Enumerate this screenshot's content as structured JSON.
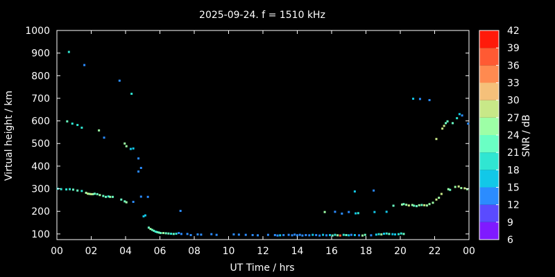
{
  "chart_data": {
    "type": "scatter",
    "title": "2025-09-24. f = 1510 kHz",
    "xlabel": "UT Time / hrs",
    "ylabel": "Virtual height / km",
    "xlim": [
      0,
      24
    ],
    "ylim": [
      75,
      1000
    ],
    "xticks": [
      "00",
      "02",
      "04",
      "06",
      "08",
      "10",
      "12",
      "14",
      "16",
      "18",
      "20",
      "22",
      "00"
    ],
    "yticks": [
      100,
      200,
      300,
      400,
      500,
      600,
      700,
      800,
      900,
      1000
    ],
    "grid": false,
    "colorbar": {
      "label": "SNR / dB",
      "min": 6,
      "max": 42,
      "ticks": [
        6,
        9,
        12,
        15,
        18,
        21,
        24,
        27,
        30,
        33,
        36,
        39,
        42
      ],
      "colors": [
        "#7f1aff",
        "#5a4bff",
        "#2b8cff",
        "#12c8e8",
        "#30e6d2",
        "#6affc4",
        "#9dffa6",
        "#c8e888",
        "#f5c07a",
        "#ff8a50",
        "#ff5a33",
        "#ff1a0a"
      ]
    },
    "points": [
      [
        0.05,
        300,
        18
      ],
      [
        0.25,
        298,
        18
      ],
      [
        0.55,
        297,
        18
      ],
      [
        0.75,
        298,
        18
      ],
      [
        0.95,
        296,
        21
      ],
      [
        1.2,
        292,
        21
      ],
      [
        1.45,
        290,
        18
      ],
      [
        1.7,
        282,
        24
      ],
      [
        1.8,
        278,
        27
      ],
      [
        1.9,
        277,
        24
      ],
      [
        2.0,
        276,
        27
      ],
      [
        2.1,
        276,
        24
      ],
      [
        2.2,
        278,
        21
      ],
      [
        2.35,
        276,
        21
      ],
      [
        2.5,
        272,
        24
      ],
      [
        2.7,
        268,
        21
      ],
      [
        2.85,
        264,
        21
      ],
      [
        3.0,
        266,
        18
      ],
      [
        3.1,
        264,
        24
      ],
      [
        3.25,
        264,
        21
      ],
      [
        3.75,
        252,
        21
      ],
      [
        3.95,
        244,
        21
      ],
      [
        4.05,
        240,
        24
      ],
      [
        4.45,
        242,
        12
      ],
      [
        4.9,
        265,
        12
      ],
      [
        5.3,
        264,
        12
      ],
      [
        5.05,
        178,
        15
      ],
      [
        5.15,
        182,
        15
      ],
      [
        5.35,
        128,
        21
      ],
      [
        5.45,
        122,
        24
      ],
      [
        5.55,
        118,
        21
      ],
      [
        5.65,
        114,
        21
      ],
      [
        5.75,
        110,
        18
      ],
      [
        5.85,
        108,
        21
      ],
      [
        5.95,
        106,
        21
      ],
      [
        6.05,
        104,
        21
      ],
      [
        6.2,
        104,
        24
      ],
      [
        6.35,
        103,
        21
      ],
      [
        6.5,
        102,
        21
      ],
      [
        6.65,
        101,
        18
      ],
      [
        6.8,
        100,
        21
      ],
      [
        6.95,
        101,
        18
      ],
      [
        7.1,
        104,
        12
      ],
      [
        7.25,
        100,
        12
      ],
      [
        7.6,
        100,
        12
      ],
      [
        7.8,
        95,
        12
      ],
      [
        8.2,
        98,
        12
      ],
      [
        8.4,
        97,
        12
      ],
      [
        9.0,
        99,
        12
      ],
      [
        9.3,
        96,
        12
      ],
      [
        10.3,
        98,
        12
      ],
      [
        10.6,
        97,
        12
      ],
      [
        11.0,
        96,
        12
      ],
      [
        11.4,
        95,
        12
      ],
      [
        11.7,
        94,
        12
      ],
      [
        12.3,
        96,
        12
      ],
      [
        12.7,
        95,
        12
      ],
      [
        12.85,
        93,
        12
      ],
      [
        13.0,
        94,
        15
      ],
      [
        13.2,
        95,
        12
      ],
      [
        13.5,
        96,
        12
      ],
      [
        13.7,
        94,
        12
      ],
      [
        13.85,
        97,
        12
      ],
      [
        14.0,
        94,
        12
      ],
      [
        14.15,
        96,
        12
      ],
      [
        14.3,
        93,
        12
      ],
      [
        14.5,
        95,
        12
      ],
      [
        14.7,
        94,
        12
      ],
      [
        14.9,
        96,
        15
      ],
      [
        15.1,
        95,
        12
      ],
      [
        15.3,
        93,
        12
      ],
      [
        15.5,
        96,
        15
      ],
      [
        15.7,
        94,
        12
      ],
      [
        15.9,
        95,
        15
      ],
      [
        16.05,
        93,
        21
      ],
      [
        16.2,
        96,
        18
      ],
      [
        16.35,
        94,
        24
      ],
      [
        16.5,
        93,
        36
      ],
      [
        16.7,
        96,
        18
      ],
      [
        16.85,
        95,
        21
      ],
      [
        17.0,
        94,
        15
      ],
      [
        17.15,
        96,
        12
      ],
      [
        17.35,
        95,
        15
      ],
      [
        17.6,
        94,
        12
      ],
      [
        17.8,
        93,
        24
      ],
      [
        17.95,
        96,
        21
      ],
      [
        18.3,
        94,
        12
      ],
      [
        18.6,
        97,
        15
      ],
      [
        18.75,
        99,
        18
      ],
      [
        18.9,
        98,
        24
      ],
      [
        19.05,
        101,
        15
      ],
      [
        19.2,
        102,
        18
      ],
      [
        19.35,
        100,
        21
      ],
      [
        19.55,
        99,
        15
      ],
      [
        19.7,
        98,
        15
      ],
      [
        19.9,
        99,
        18
      ],
      [
        20.05,
        102,
        18
      ],
      [
        20.2,
        100,
        21
      ],
      [
        15.6,
        197,
        24
      ],
      [
        16.2,
        198,
        12
      ],
      [
        16.6,
        190,
        12
      ],
      [
        17.0,
        197,
        12
      ],
      [
        17.4,
        191,
        15
      ],
      [
        17.55,
        192,
        18
      ],
      [
        18.5,
        197,
        15
      ],
      [
        19.2,
        198,
        15
      ],
      [
        19.6,
        225,
        21
      ],
      [
        20.1,
        230,
        24
      ],
      [
        20.2,
        232,
        21
      ],
      [
        20.35,
        229,
        24
      ],
      [
        20.5,
        226,
        27
      ],
      [
        20.7,
        228,
        24
      ],
      [
        20.8,
        225,
        21
      ],
      [
        20.95,
        223,
        21
      ],
      [
        21.1,
        227,
        24
      ],
      [
        21.25,
        228,
        21
      ],
      [
        21.4,
        227,
        27
      ],
      [
        21.55,
        226,
        24
      ],
      [
        21.7,
        232,
        24
      ],
      [
        21.9,
        238,
        24
      ],
      [
        22.1,
        252,
        27
      ],
      [
        22.25,
        260,
        24
      ],
      [
        22.4,
        277,
        27
      ],
      [
        22.8,
        298,
        24
      ],
      [
        22.9,
        295,
        21
      ],
      [
        23.2,
        308,
        24
      ],
      [
        23.4,
        310,
        27
      ],
      [
        23.55,
        303,
        24
      ],
      [
        23.75,
        302,
        27
      ],
      [
        23.9,
        298,
        24
      ],
      [
        0.6,
        598,
        21
      ],
      [
        0.9,
        588,
        18
      ],
      [
        1.2,
        582,
        18
      ],
      [
        1.45,
        570,
        18
      ],
      [
        2.45,
        558,
        24
      ],
      [
        2.75,
        526,
        12
      ],
      [
        3.95,
        500,
        24
      ],
      [
        4.05,
        488,
        24
      ],
      [
        4.3,
        476,
        15
      ],
      [
        4.45,
        478,
        15
      ],
      [
        4.75,
        434,
        12
      ],
      [
        4.9,
        392,
        12
      ],
      [
        4.75,
        376,
        12
      ],
      [
        0.7,
        905,
        18
      ],
      [
        1.6,
        847,
        12
      ],
      [
        3.65,
        778,
        12
      ],
      [
        4.35,
        720,
        18
      ],
      [
        7.2,
        202,
        12
      ],
      [
        17.35,
        288,
        15
      ],
      [
        18.45,
        292,
        12
      ],
      [
        20.75,
        698,
        15
      ],
      [
        21.15,
        697,
        12
      ],
      [
        21.7,
        692,
        12
      ],
      [
        22.1,
        520,
        27
      ],
      [
        22.45,
        566,
        27
      ],
      [
        22.55,
        578,
        27
      ],
      [
        22.65,
        590,
        21
      ],
      [
        22.75,
        598,
        21
      ],
      [
        23.05,
        590,
        21
      ],
      [
        23.3,
        612,
        18
      ],
      [
        23.45,
        630,
        15
      ],
      [
        23.6,
        624,
        12
      ],
      [
        23.95,
        588,
        12
      ]
    ]
  }
}
